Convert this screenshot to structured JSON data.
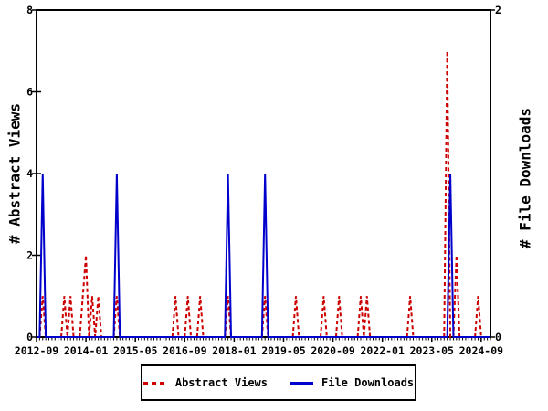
{
  "axes": {
    "left_title": "# Abstract Views",
    "right_title": "# File Downloads"
  },
  "legend": {
    "abstract_views": "Abstract Views",
    "file_downloads": "File Downloads"
  },
  "colors": {
    "abstract_views": "#cc0000",
    "file_downloads": "#0000cc",
    "axis": "#000000",
    "background": "#ffffff"
  },
  "chart_data": {
    "type": "line",
    "title": "",
    "x": {
      "unit": "month",
      "start_month": "2012-09",
      "end_month": "2024-12",
      "total_months": 148,
      "tick_labels": [
        "2012-09",
        "2014-01",
        "2015-05",
        "2016-09",
        "2018-01",
        "2019-05",
        "2020-09",
        "2022-01",
        "2023-05",
        "2024-09"
      ],
      "tick_month_indices": [
        0,
        16,
        32,
        48,
        64,
        80,
        96,
        112,
        128,
        144
      ]
    },
    "left_axis": {
      "label": "# Abstract Views",
      "min": 0,
      "max": 8,
      "tick_values": [
        0,
        2,
        4,
        6,
        8
      ],
      "tick_labels": [
        "0",
        "2",
        "4",
        "6",
        "8"
      ]
    },
    "right_axis": {
      "label": "# File Downloads",
      "min": 0,
      "max": 2,
      "tick_values": [
        0,
        2
      ],
      "tick_labels": [
        "0",
        "2"
      ]
    },
    "grid": false,
    "legend_position": "bottom-center",
    "series": [
      {
        "name": "Abstract Views",
        "axis": "left",
        "style": "dashed",
        "color": "#cc0000",
        "default_value": 0,
        "points": {
          "2012-11": 1,
          "2013-06": 1,
          "2013-08": 1,
          "2013-12": 1,
          "2014-01": 2,
          "2014-03": 1,
          "2014-05": 1,
          "2014-11": 1,
          "2016-06": 1,
          "2016-10": 1,
          "2017-02": 1,
          "2017-11": 1,
          "2018-11": 1,
          "2019-09": 1,
          "2020-06": 1,
          "2020-11": 1,
          "2021-06": 1,
          "2021-08": 1,
          "2022-10": 1,
          "2023-10": 7,
          "2024-01": 2,
          "2024-08": 1
        }
      },
      {
        "name": "File Downloads",
        "axis": "right",
        "style": "solid",
        "color": "#0000cc",
        "default_value": 0,
        "points": {
          "2012-11": 1,
          "2014-11": 1,
          "2017-11": 1,
          "2018-11": 1,
          "2023-11": 1
        }
      }
    ]
  }
}
